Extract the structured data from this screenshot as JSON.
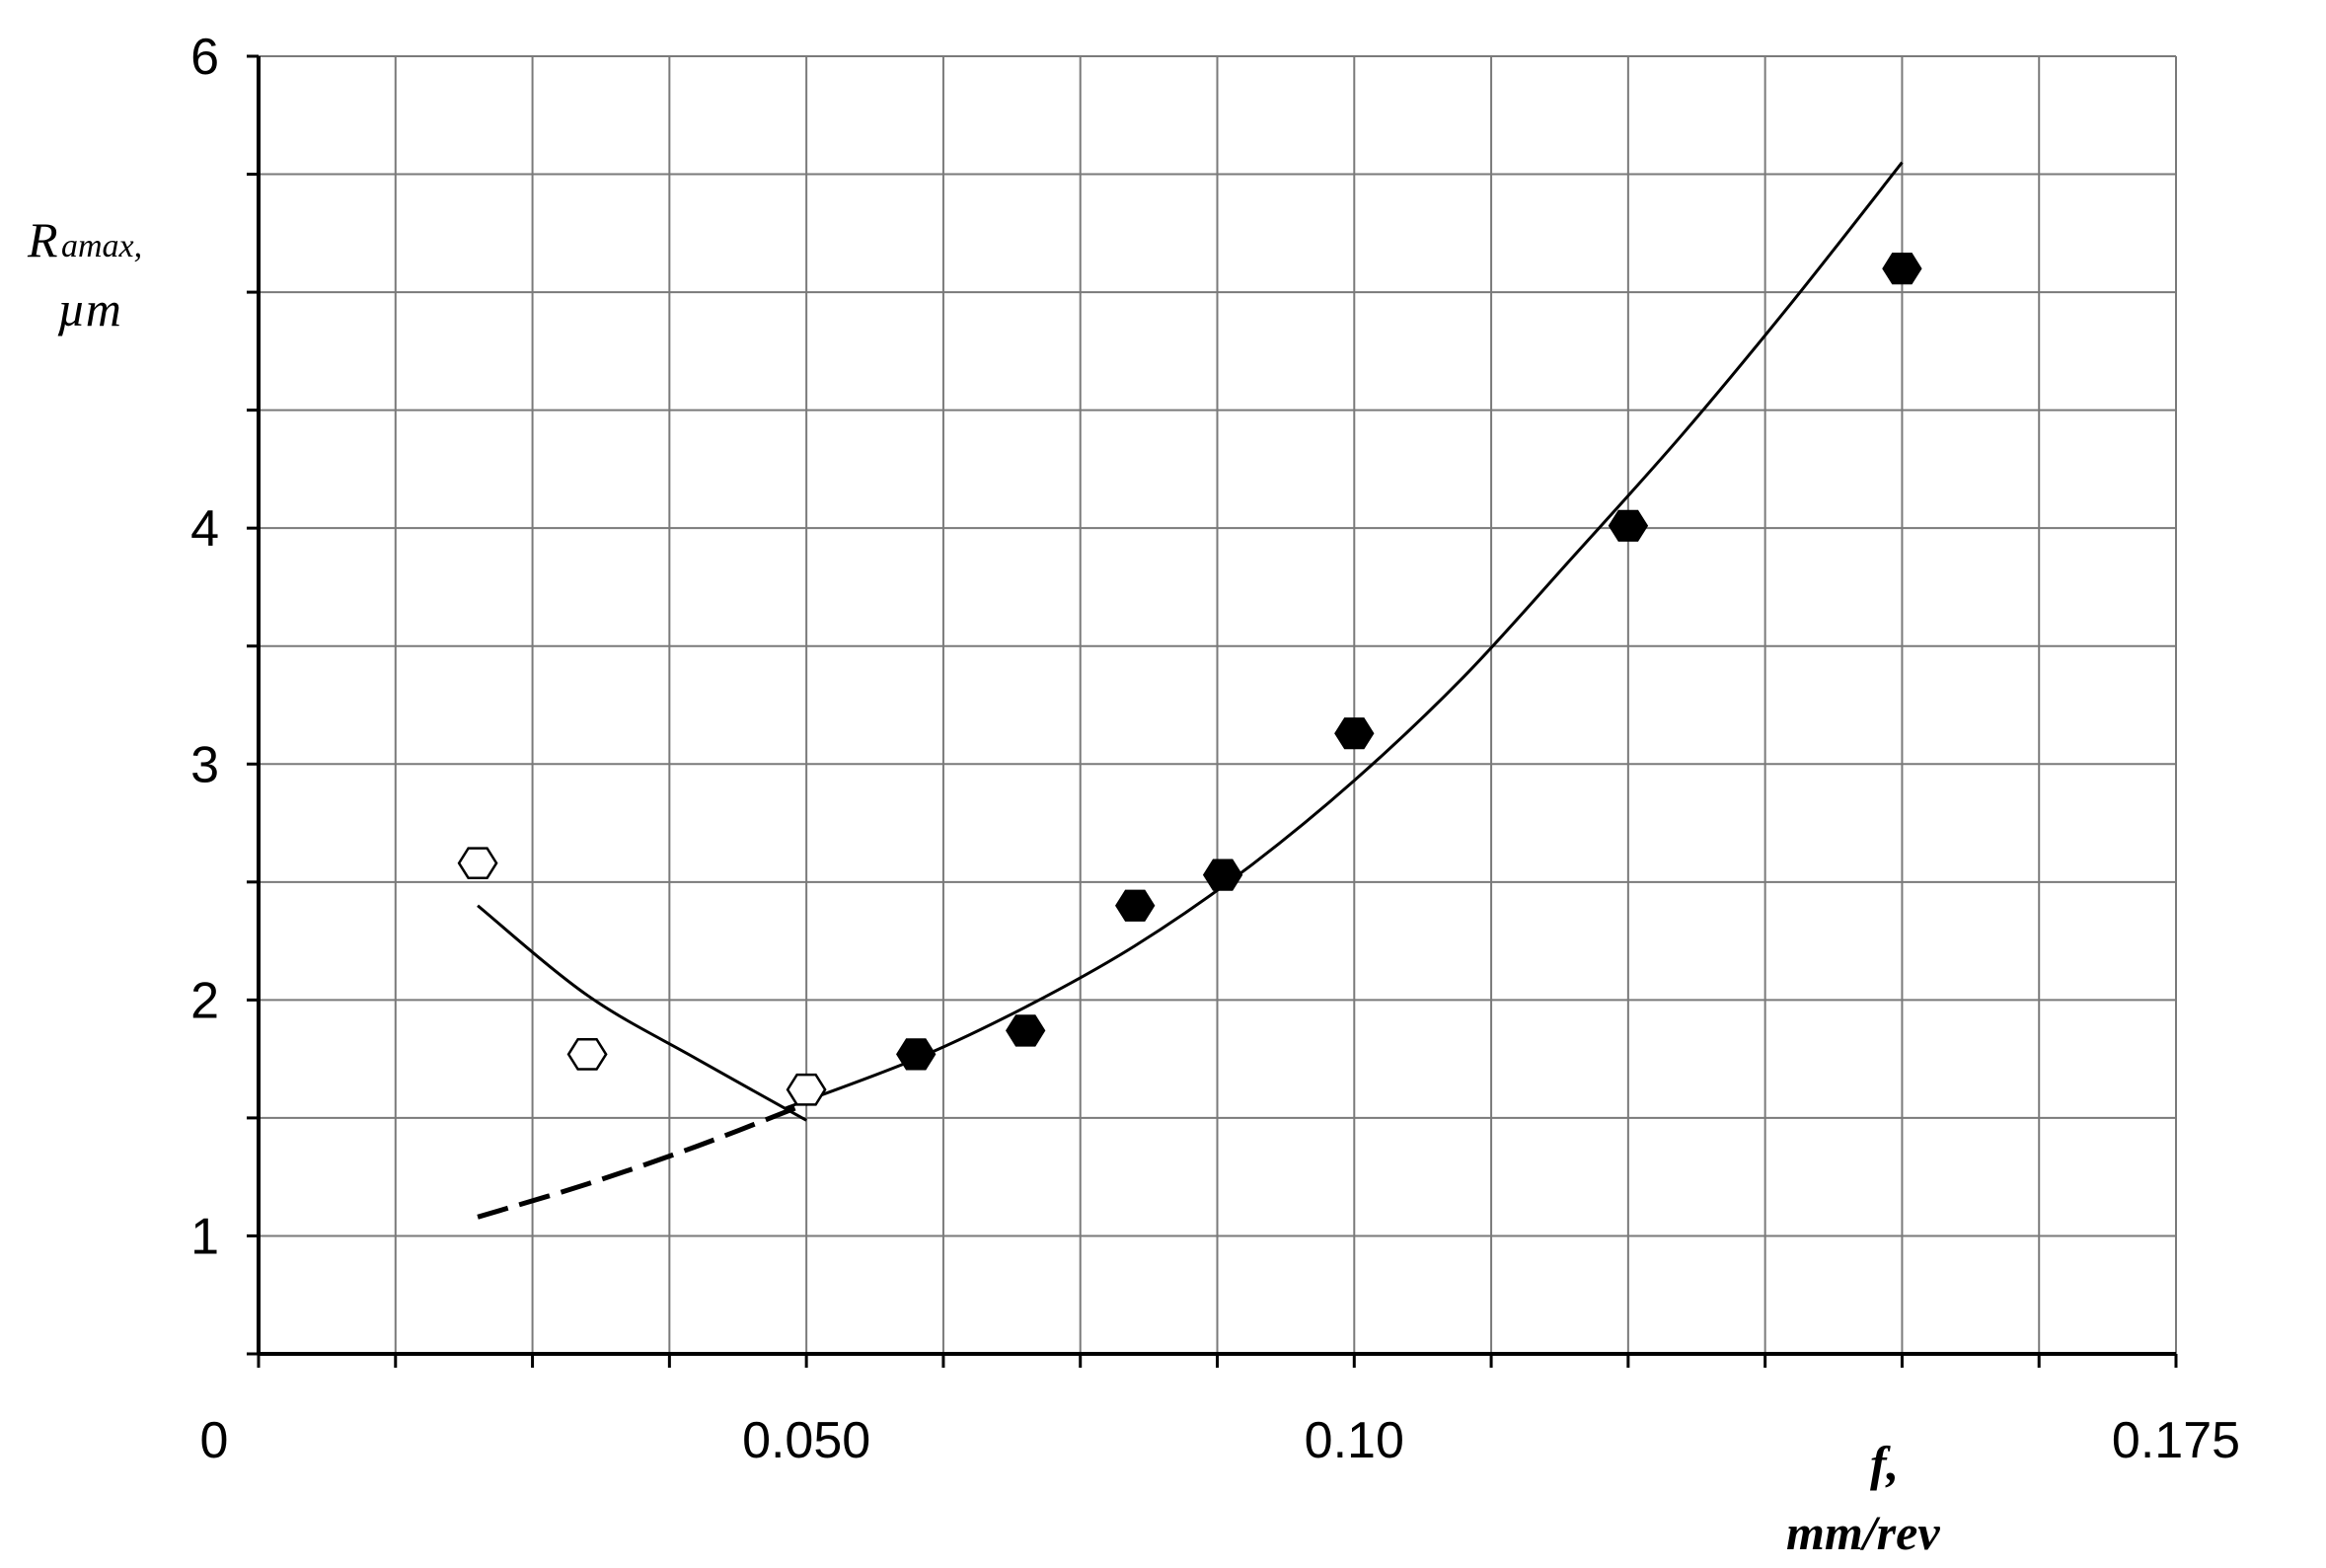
{
  "chart_data": {
    "type": "scatter",
    "title": "",
    "xlabel": "f,",
    "xlabel_unit": "mm/rev",
    "ylabel_main": "R",
    "ylabel_sub": "amax,",
    "ylabel_unit": "µm",
    "xlim": [
      0,
      0.175
    ],
    "ylim": [
      0.5,
      6
    ],
    "x_ticks": [
      {
        "value": 0,
        "label": "0"
      },
      {
        "value": 0.05,
        "label": "0.050"
      },
      {
        "value": 0.1,
        "label": "0.10"
      },
      {
        "value": 0.175,
        "label": "0.175"
      }
    ],
    "y_ticks": [
      {
        "value": 1,
        "label": "1"
      },
      {
        "value": 2,
        "label": "2"
      },
      {
        "value": 3,
        "label": "3"
      },
      {
        "value": 4,
        "label": "4"
      },
      {
        "value": 6,
        "label": "6"
      }
    ],
    "x_grid_step": 0.0125,
    "y_grid_step": 0.5,
    "grid": true,
    "series": [
      {
        "marker": "hexagon-open",
        "x": [
          0.02,
          0.03,
          0.05
        ],
        "y": [
          2.58,
          1.77,
          1.62
        ]
      },
      {
        "marker": "hexagon-filled",
        "x": [
          0.06,
          0.07,
          0.08,
          0.088,
          0.1,
          0.125,
          0.15
        ],
        "y": [
          1.77,
          1.87,
          2.4,
          2.53,
          3.13,
          4.01,
          5.1
        ]
      }
    ],
    "curves": [
      {
        "style": "solid",
        "x": [
          0.02,
          0.03,
          0.04,
          0.05
        ],
        "y": [
          2.4,
          2.02,
          1.75,
          1.49
        ]
      },
      {
        "style": "dashed",
        "x": [
          0.02,
          0.03,
          0.04,
          0.05
        ],
        "y": [
          1.08,
          1.22,
          1.38,
          1.56
        ]
      },
      {
        "style": "solid",
        "x": [
          0.048,
          0.06,
          0.07,
          0.08,
          0.09,
          0.1,
          0.11,
          0.12,
          0.13,
          0.14,
          0.15
        ],
        "y": [
          1.54,
          1.75,
          1.97,
          2.23,
          2.55,
          2.93,
          3.37,
          3.88,
          4.4,
          4.96,
          5.55
        ]
      }
    ]
  }
}
